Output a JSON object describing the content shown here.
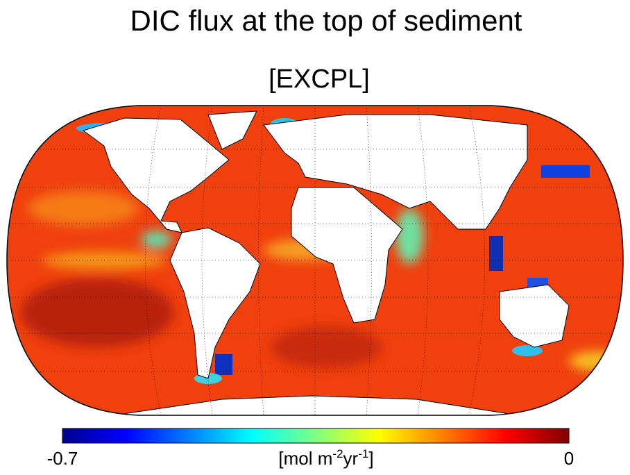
{
  "title": "DIC flux at the top of sediment",
  "subtitle": "[EXCPL]",
  "colorbar": {
    "ticks": [
      -0.7,
      0
    ],
    "unit": [
      "[mol m",
      "-2",
      "yr",
      "-1",
      "]"
    ]
  }
}
